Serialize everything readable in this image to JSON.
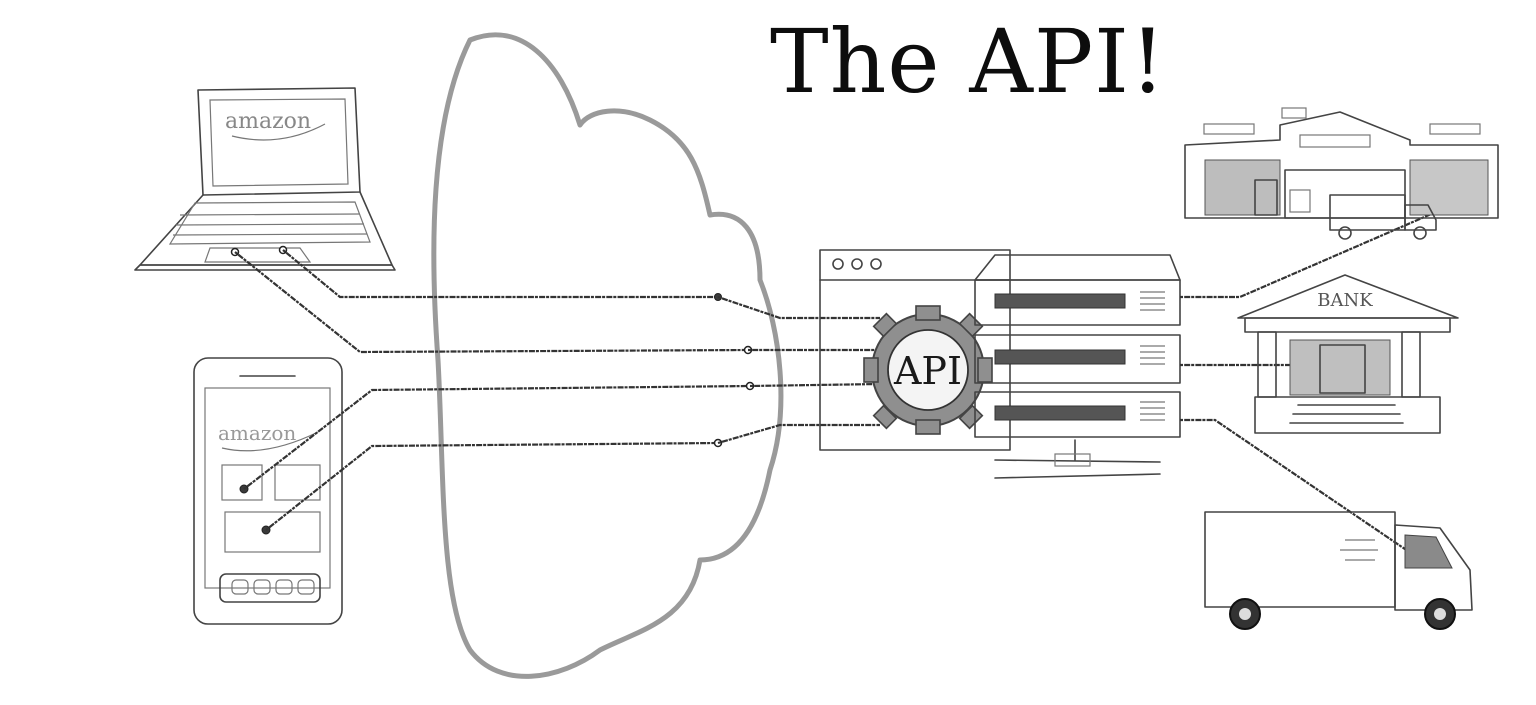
{
  "title": "The API!",
  "labels": {
    "laptop_brand": "amazon",
    "phone_brand": "amazon",
    "api_badge": "API",
    "bank_sign": "BANK"
  },
  "colors": {
    "ink": "#333333",
    "cloud": "#9a9a9a",
    "background": "#ffffff"
  }
}
